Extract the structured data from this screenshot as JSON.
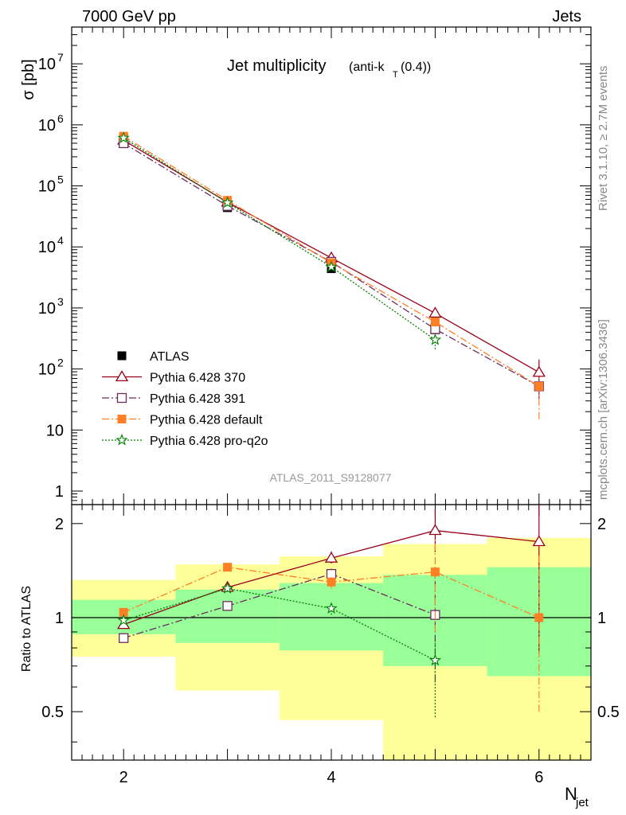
{
  "header": {
    "left_label": "7000 GeV pp",
    "right_label": "Jets"
  },
  "side_labels": {
    "rivet": "Rivet 3.1.10, ≥ 2.7M events",
    "mcplots": "mcplots.cern.ch [arXiv:1306.3436]"
  },
  "chart_data": [
    {
      "type": "scatter",
      "title": "Jet multiplicity",
      "title_sub_pre": "(anti-k",
      "title_sub_index": "T",
      "title_sub_post": "(0.4))",
      "analysis_label": "ATLAS_2011_S9128077",
      "ylabel": "σ [pb]",
      "xlabel_main": "N",
      "xlabel_sub": "jet",
      "xlim": [
        1.5,
        6.5
      ],
      "ylim": [
        0.6,
        40000000
      ],
      "yscale": "log",
      "yticks": [
        {
          "v": 1,
          "label": "1"
        },
        {
          "v": 10,
          "label": "10"
        },
        {
          "v": 100,
          "label": "10",
          "exp": "2"
        },
        {
          "v": 1000,
          "label": "10",
          "exp": "3"
        },
        {
          "v": 10000,
          "label": "10",
          "exp": "4"
        },
        {
          "v": 100000,
          "label": "10",
          "exp": "5"
        },
        {
          "v": 1000000,
          "label": "10",
          "exp": "6"
        },
        {
          "v": 10000000,
          "label": "10",
          "exp": "7"
        }
      ],
      "xticks": [
        2,
        3,
        4,
        5,
        6
      ],
      "xtick_labels": [
        "2",
        "4",
        "6"
      ],
      "legend_position": "bottom-left",
      "series": [
        {
          "name": "ATLAS",
          "color": "#000000",
          "marker": "filled-square",
          "line": "none",
          "x": [
            2,
            3,
            4,
            5,
            6
          ],
          "y": [
            620000,
            44000,
            4400,
            440,
            52
          ],
          "err_lo": [
            30000,
            3000,
            400,
            60,
            12
          ],
          "err_hi": [
            30000,
            3000,
            400,
            60,
            12
          ]
        },
        {
          "name": "Pythia 6.428 370",
          "color": "#99001a",
          "marker": "open-triangle",
          "line": "solid",
          "x": [
            2,
            3,
            4,
            5,
            6
          ],
          "y": [
            560000,
            54000,
            6600,
            820,
            88
          ],
          "err_lo": [
            5000,
            2000,
            500,
            150,
            35
          ],
          "err_hi": [
            5000,
            2000,
            500,
            150,
            55
          ]
        },
        {
          "name": "Pythia 6.428 391",
          "color": "#6b2d5c",
          "marker": "open-square",
          "line": "dashdot",
          "x": [
            2,
            3,
            4,
            5,
            6
          ],
          "y": [
            500000,
            47000,
            5700,
            450,
            52
          ],
          "err_lo": [
            5000,
            2000,
            400,
            80,
            20
          ],
          "err_hi": [
            5000,
            2000,
            400,
            80,
            20
          ]
        },
        {
          "name": "Pythia 6.428 default",
          "color": "#ff7f24",
          "marker": "filled-square",
          "line": "dashdot",
          "x": [
            2,
            3,
            4,
            5,
            6
          ],
          "y": [
            650000,
            58000,
            5500,
            590,
            52
          ],
          "err_lo": [
            5000,
            2000,
            400,
            100,
            37
          ],
          "err_hi": [
            5000,
            2000,
            400,
            100,
            20
          ]
        },
        {
          "name": "Pythia 6.428 pro-q2o",
          "color": "#008000",
          "marker": "open-star",
          "line": "dotted",
          "x": [
            2,
            3,
            4,
            5
          ],
          "y": [
            610000,
            53000,
            4700,
            300
          ],
          "err_lo": [
            5000,
            2000,
            300,
            90
          ],
          "err_hi": [
            5000,
            2000,
            300,
            30
          ]
        }
      ]
    },
    {
      "type": "scatter",
      "ylabel": "Ratio to ATLAS",
      "xlim": [
        1.5,
        6.5
      ],
      "ylim": [
        0.35,
        2.3
      ],
      "yscale": "log",
      "yticks": [
        {
          "v": 0.5,
          "label": "0.5"
        },
        {
          "v": 1,
          "label": "1"
        },
        {
          "v": 2,
          "label": "2"
        }
      ],
      "reference_line": 1,
      "bands": {
        "bins": [
          [
            1.5,
            2.5
          ],
          [
            2.5,
            3.5
          ],
          [
            3.5,
            4.5
          ],
          [
            4.5,
            5.5
          ],
          [
            5.5,
            6.5
          ]
        ],
        "inner_color": "#99ff99",
        "outer_color": "#ffff99",
        "inner": [
          [
            0.885,
            1.14
          ],
          [
            0.83,
            1.23
          ],
          [
            0.785,
            1.29
          ],
          [
            0.7,
            1.37
          ],
          [
            0.65,
            1.45
          ]
        ],
        "outer": [
          [
            0.75,
            1.32
          ],
          [
            0.585,
            1.48
          ],
          [
            0.47,
            1.57
          ],
          [
            0.35,
            1.72
          ],
          [
            0.35,
            1.8
          ]
        ]
      },
      "series": [
        {
          "name": "Pythia 6.428 370",
          "color": "#99001a",
          "marker": "open-triangle",
          "line": "solid",
          "x": [
            2,
            3,
            4,
            5,
            6
          ],
          "y": [
            0.95,
            1.25,
            1.55,
            1.9,
            1.75
          ],
          "err_lo": [
            0.01,
            0.02,
            0.06,
            0.28,
            0.98
          ],
          "err_hi": [
            0.01,
            0.02,
            0.08,
            0.32,
            0.55
          ]
        },
        {
          "name": "Pythia 6.428 391",
          "color": "#6b2d5c",
          "marker": "open-square",
          "line": "dashdot",
          "x": [
            2,
            3,
            4,
            5
          ],
          "y": [
            0.86,
            1.09,
            1.38,
            1.02
          ],
          "err_lo": [
            0.01,
            0.02,
            0.06,
            0.4
          ],
          "err_hi": [
            0.01,
            0.02,
            0.06,
            0.4
          ]
        },
        {
          "name": "Pythia 6.428 default",
          "color": "#ff7f24",
          "marker": "filled-square",
          "line": "dashdot",
          "x": [
            2,
            3,
            4,
            5,
            6
          ],
          "y": [
            1.04,
            1.45,
            1.3,
            1.4,
            1.0
          ],
          "err_lo": [
            0.01,
            0.02,
            0.06,
            0.5,
            0.5
          ],
          "err_hi": [
            0.01,
            0.02,
            0.06,
            0.4,
            0.6
          ]
        },
        {
          "name": "Pythia 6.428 pro-q2o",
          "color": "#008000",
          "marker": "open-star",
          "line": "dotted",
          "x": [
            2,
            3,
            4,
            5
          ],
          "y": [
            0.98,
            1.24,
            1.07,
            0.73
          ],
          "err_lo": [
            0.01,
            0.02,
            0.05,
            0.25
          ],
          "err_hi": [
            0.01,
            0.02,
            0.05,
            0.1
          ]
        }
      ]
    }
  ]
}
